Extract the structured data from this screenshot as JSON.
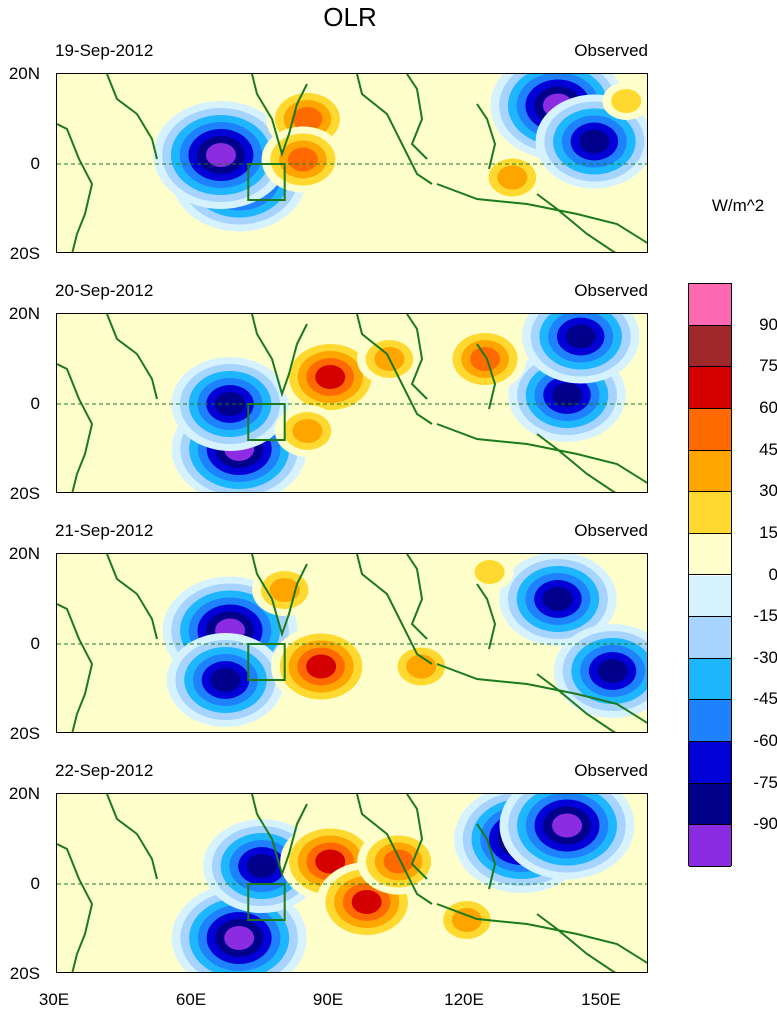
{
  "title": "OLR",
  "unit_label": "W/m^2",
  "colorbar": {
    "labels": [
      "90",
      "75",
      "60",
      "45",
      "30",
      "15",
      "0",
      "-15",
      "-30",
      "-45",
      "-60",
      "-75",
      "-90"
    ],
    "colors": [
      "#ff69b4",
      "#a0282a",
      "#d40000",
      "#ff6a00",
      "#ffa500",
      "#ffd92f",
      "#ffffcc",
      "#d6f2ff",
      "#a7d3ff",
      "#1eb6ff",
      "#1e82ff",
      "#0000d7",
      "#00008b",
      "#8b2be2"
    ]
  },
  "axes": {
    "lat_labels": [
      "20N",
      "0",
      "20S"
    ],
    "lon_labels": [
      "30E",
      "60E",
      "90E",
      "120E",
      "150E"
    ]
  },
  "chart_data": [
    {
      "type": "heatmap",
      "date": "19-Sep-2012",
      "source": "Observed",
      "variable": "OLR anomaly",
      "features": [
        {
          "lon": 70,
          "lat": -3,
          "value": -90
        },
        {
          "lon": 66,
          "lat": 2,
          "value": -90
        },
        {
          "lon": 140,
          "lat": 13,
          "value": -90
        },
        {
          "lon": 148,
          "lat": 5,
          "value": -75
        },
        {
          "lon": 85,
          "lat": 10,
          "value": 45
        },
        {
          "lon": 84,
          "lat": 1,
          "value": 45
        },
        {
          "lon": 130,
          "lat": -3,
          "value": 30
        },
        {
          "lon": 155,
          "lat": 14,
          "value": 15
        }
      ]
    },
    {
      "type": "heatmap",
      "date": "20-Sep-2012",
      "source": "Observed",
      "variable": "OLR anomaly",
      "features": [
        {
          "lon": 70,
          "lat": -10,
          "value": -90
        },
        {
          "lon": 68,
          "lat": 0,
          "value": -75
        },
        {
          "lon": 142,
          "lat": 2,
          "value": -75
        },
        {
          "lon": 145,
          "lat": 15,
          "value": -75
        },
        {
          "lon": 90,
          "lat": 6,
          "value": 60
        },
        {
          "lon": 124,
          "lat": 10,
          "value": 45
        },
        {
          "lon": 85,
          "lat": -6,
          "value": 30
        },
        {
          "lon": 103,
          "lat": 10,
          "value": 30
        }
      ]
    },
    {
      "type": "heatmap",
      "date": "21-Sep-2012",
      "source": "Observed",
      "variable": "OLR anomaly",
      "features": [
        {
          "lon": 68,
          "lat": 3,
          "value": -90
        },
        {
          "lon": 67,
          "lat": -8,
          "value": -75
        },
        {
          "lon": 140,
          "lat": 10,
          "value": -75
        },
        {
          "lon": 152,
          "lat": -6,
          "value": -75
        },
        {
          "lon": 88,
          "lat": -5,
          "value": 60
        },
        {
          "lon": 80,
          "lat": 12,
          "value": 30
        },
        {
          "lon": 110,
          "lat": -5,
          "value": 30
        },
        {
          "lon": 125,
          "lat": 16,
          "value": 15
        }
      ]
    },
    {
      "type": "heatmap",
      "date": "22-Sep-2012",
      "source": "Observed",
      "variable": "OLR anomaly",
      "features": [
        {
          "lon": 70,
          "lat": -12,
          "value": -90
        },
        {
          "lon": 132,
          "lat": 10,
          "value": -90
        },
        {
          "lon": 142,
          "lat": 13,
          "value": -90
        },
        {
          "lon": 75,
          "lat": 4,
          "value": -75
        },
        {
          "lon": 90,
          "lat": 5,
          "value": 60
        },
        {
          "lon": 98,
          "lat": -4,
          "value": 60
        },
        {
          "lon": 105,
          "lat": 5,
          "value": 45
        },
        {
          "lon": 120,
          "lat": -8,
          "value": 30
        }
      ]
    }
  ]
}
